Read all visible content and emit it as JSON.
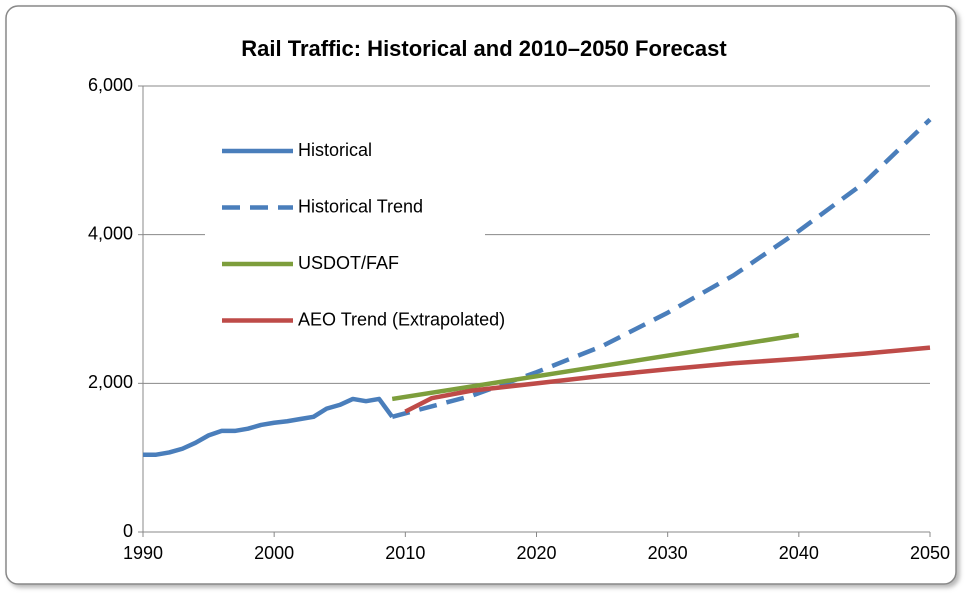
{
  "chart_data": {
    "type": "line",
    "title": "Rail Traffic: Historical and 2010–2050 Forecast",
    "xlim": [
      1990,
      2050
    ],
    "xticks": [
      1990,
      2000,
      2010,
      2020,
      2030,
      2040,
      2050
    ],
    "ylim": [
      0,
      6000
    ],
    "yticks": [
      0,
      {
        "value": 2000,
        "label": "2,000"
      },
      {
        "value": 4000,
        "label": "4,000"
      },
      {
        "value": 6000,
        "label": "6,000"
      }
    ],
    "grid": true,
    "legend": "upper left",
    "series": [
      {
        "name": "Historical",
        "color": "#4a7ebb",
        "style": "solid",
        "x": [
          1990,
          1991,
          1992,
          1993,
          1994,
          1995,
          1996,
          1997,
          1998,
          1999,
          2000,
          2001,
          2002,
          2003,
          2004,
          2005,
          2006,
          2007,
          2008,
          2009
        ],
        "values": [
          1040,
          1040,
          1070,
          1120,
          1200,
          1300,
          1360,
          1360,
          1390,
          1440,
          1470,
          1490,
          1520,
          1550,
          1660,
          1710,
          1790,
          1760,
          1790,
          1550
        ]
      },
      {
        "name": "Historical Trend",
        "color": "#4a7ebb",
        "style": "dashed",
        "x": [
          2009,
          2015,
          2020,
          2025,
          2030,
          2035,
          2040,
          2045,
          2050
        ],
        "values": [
          1550,
          1830,
          2150,
          2500,
          2950,
          3450,
          4050,
          4700,
          5550
        ]
      },
      {
        "name": "USDOT/FAF",
        "color": "#7d9e3c",
        "style": "solid",
        "x": [
          2009,
          2040
        ],
        "values": [
          1790,
          2650
        ]
      },
      {
        "name": "AEO Trend (Extrapolated)",
        "color": "#be4b48",
        "style": "solid",
        "x": [
          2010,
          2012,
          2015,
          2020,
          2025,
          2030,
          2035,
          2040,
          2045,
          2050
        ],
        "values": [
          1620,
          1800,
          1900,
          2000,
          2100,
          2190,
          2270,
          2330,
          2400,
          2480
        ]
      }
    ]
  }
}
